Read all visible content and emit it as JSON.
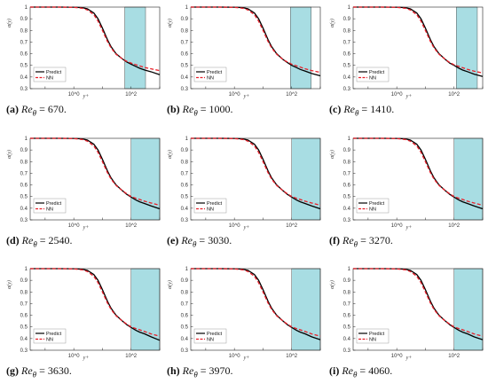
{
  "chart_data": {
    "type": "line",
    "xscale": "log",
    "x_ticks": [
      "10^0",
      "10^2"
    ],
    "y_ticks": [
      "0.3",
      "0.4",
      "0.5",
      "0.6",
      "0.7",
      "0.8",
      "0.9",
      "1"
    ],
    "xlim": [
      0.03,
      1000
    ],
    "ylim": [
      0.3,
      1.0
    ],
    "xlabel": "y+",
    "ylabel": "α(y)",
    "legend": [
      "Predict",
      "NN"
    ],
    "legend_placement": "bottom-left",
    "shaded_region_color": "#a8dde3",
    "colors": {
      "predict": "#000000",
      "nn": "#e8202a"
    },
    "x_samples": [
      0.03,
      0.1,
      0.3,
      1,
      2,
      3,
      5,
      7,
      10,
      15,
      20,
      30,
      50,
      70,
      100,
      150,
      200,
      300,
      500,
      1000
    ],
    "panels": [
      {
        "label": "(a)",
        "re_value": "670",
        "shade_x": [
          60,
          320
        ],
        "series": [
          {
            "name": "Predict",
            "y": [
              1.0,
              1.0,
              1.0,
              0.999,
              0.995,
              0.985,
              0.95,
              0.9,
              0.82,
              0.72,
              0.66,
              0.6,
              0.555,
              0.53,
              0.51,
              0.49,
              0.475,
              0.46,
              0.445,
              0.42
            ]
          },
          {
            "name": "NN",
            "y": [
              1.0,
              1.0,
              1.0,
              0.998,
              0.99,
              0.975,
              0.935,
              0.88,
              0.8,
              0.705,
              0.65,
              0.595,
              0.555,
              0.535,
              0.52,
              0.505,
              0.495,
              0.482,
              0.47,
              0.455
            ]
          }
        ]
      },
      {
        "label": "(b)",
        "re_value": "1000",
        "shade_x": [
          90,
          480
        ],
        "series": [
          {
            "name": "Predict",
            "y": [
              1.0,
              1.0,
              1.0,
              0.999,
              0.995,
              0.985,
              0.95,
              0.9,
              0.82,
              0.72,
              0.66,
              0.6,
              0.55,
              0.525,
              0.5,
              0.48,
              0.465,
              0.45,
              0.43,
              0.41
            ]
          },
          {
            "name": "NN",
            "y": [
              1.0,
              1.0,
              1.0,
              0.998,
              0.99,
              0.975,
              0.935,
              0.88,
              0.8,
              0.705,
              0.65,
              0.595,
              0.55,
              0.53,
              0.51,
              0.495,
              0.485,
              0.47,
              0.455,
              0.44
            ]
          }
        ]
      },
      {
        "label": "(c)",
        "re_value": "1410",
        "shade_x": [
          120,
          650
        ],
        "series": [
          {
            "name": "Predict",
            "y": [
              1.0,
              1.0,
              1.0,
              0.999,
              0.995,
              0.985,
              0.95,
              0.9,
              0.82,
              0.72,
              0.66,
              0.6,
              0.55,
              0.52,
              0.5,
              0.475,
              0.46,
              0.445,
              0.425,
              0.405
            ]
          },
          {
            "name": "NN",
            "y": [
              1.0,
              1.0,
              1.0,
              0.998,
              0.99,
              0.975,
              0.935,
              0.88,
              0.8,
              0.705,
              0.65,
              0.595,
              0.55,
              0.525,
              0.505,
              0.49,
              0.48,
              0.465,
              0.45,
              0.435
            ]
          }
        ]
      },
      {
        "label": "(d)",
        "re_value": "2540",
        "shade_x": [
          100,
          1000
        ],
        "series": [
          {
            "name": "Predict",
            "y": [
              1.0,
              1.0,
              1.0,
              0.999,
              0.995,
              0.985,
              0.95,
              0.9,
              0.82,
              0.72,
              0.66,
              0.6,
              0.55,
              0.52,
              0.495,
              0.47,
              0.455,
              0.44,
              0.42,
              0.395
            ]
          },
          {
            "name": "NN",
            "y": [
              1.0,
              1.0,
              1.0,
              0.998,
              0.99,
              0.975,
              0.935,
              0.88,
              0.8,
              0.705,
              0.65,
              0.595,
              0.55,
              0.525,
              0.5,
              0.485,
              0.475,
              0.46,
              0.445,
              0.425
            ]
          }
        ]
      },
      {
        "label": "(e)",
        "re_value": "3030",
        "shade_x": [
          100,
          1000
        ],
        "series": [
          {
            "name": "Predict",
            "y": [
              1.0,
              1.0,
              1.0,
              0.999,
              0.995,
              0.985,
              0.95,
              0.9,
              0.82,
              0.72,
              0.66,
              0.6,
              0.55,
              0.52,
              0.495,
              0.47,
              0.455,
              0.44,
              0.42,
              0.395
            ]
          },
          {
            "name": "NN",
            "y": [
              1.0,
              1.0,
              1.0,
              0.998,
              0.99,
              0.975,
              0.935,
              0.88,
              0.8,
              0.705,
              0.65,
              0.595,
              0.55,
              0.525,
              0.5,
              0.485,
              0.475,
              0.46,
              0.445,
              0.425
            ]
          }
        ]
      },
      {
        "label": "(f)",
        "re_value": "3270",
        "shade_x": [
          100,
          1000
        ],
        "series": [
          {
            "name": "Predict",
            "y": [
              1.0,
              1.0,
              1.0,
              0.999,
              0.995,
              0.985,
              0.95,
              0.9,
              0.82,
              0.72,
              0.66,
              0.6,
              0.55,
              0.52,
              0.495,
              0.47,
              0.455,
              0.44,
              0.42,
              0.395
            ]
          },
          {
            "name": "NN",
            "y": [
              1.0,
              1.0,
              1.0,
              0.998,
              0.99,
              0.975,
              0.935,
              0.88,
              0.8,
              0.705,
              0.65,
              0.595,
              0.55,
              0.525,
              0.5,
              0.485,
              0.475,
              0.46,
              0.445,
              0.425
            ]
          }
        ]
      },
      {
        "label": "(g)",
        "re_value": "3630",
        "shade_x": [
          100,
          1000
        ],
        "series": [
          {
            "name": "Predict",
            "y": [
              1.0,
              1.0,
              1.0,
              0.999,
              0.995,
              0.985,
              0.95,
              0.9,
              0.82,
              0.72,
              0.66,
              0.6,
              0.55,
              0.52,
              0.495,
              0.47,
              0.455,
              0.44,
              0.415,
              0.385
            ]
          },
          {
            "name": "NN",
            "y": [
              1.0,
              1.0,
              1.0,
              0.998,
              0.99,
              0.975,
              0.935,
              0.88,
              0.8,
              0.705,
              0.65,
              0.595,
              0.55,
              0.525,
              0.5,
              0.485,
              0.475,
              0.46,
              0.44,
              0.42
            ]
          }
        ]
      },
      {
        "label": "(h)",
        "re_value": "3970",
        "shade_x": [
          100,
          1000
        ],
        "series": [
          {
            "name": "Predict",
            "y": [
              1.0,
              1.0,
              1.0,
              0.999,
              0.995,
              0.985,
              0.95,
              0.9,
              0.82,
              0.72,
              0.66,
              0.6,
              0.55,
              0.52,
              0.495,
              0.47,
              0.455,
              0.44,
              0.415,
              0.39
            ]
          },
          {
            "name": "NN",
            "y": [
              1.0,
              1.0,
              1.0,
              0.998,
              0.99,
              0.975,
              0.935,
              0.88,
              0.8,
              0.705,
              0.65,
              0.595,
              0.55,
              0.525,
              0.5,
              0.485,
              0.475,
              0.46,
              0.44,
              0.42
            ]
          }
        ]
      },
      {
        "label": "(i)",
        "re_value": "4060",
        "shade_x": [
          100,
          1000
        ],
        "series": [
          {
            "name": "Predict",
            "y": [
              1.0,
              1.0,
              1.0,
              0.999,
              0.995,
              0.985,
              0.95,
              0.9,
              0.82,
              0.72,
              0.66,
              0.6,
              0.55,
              0.52,
              0.495,
              0.47,
              0.455,
              0.44,
              0.415,
              0.39
            ]
          },
          {
            "name": "NN",
            "y": [
              1.0,
              1.0,
              1.0,
              0.998,
              0.99,
              0.975,
              0.935,
              0.88,
              0.8,
              0.705,
              0.65,
              0.595,
              0.55,
              0.525,
              0.5,
              0.485,
              0.475,
              0.46,
              0.44,
              0.42
            ]
          }
        ]
      }
    ]
  }
}
